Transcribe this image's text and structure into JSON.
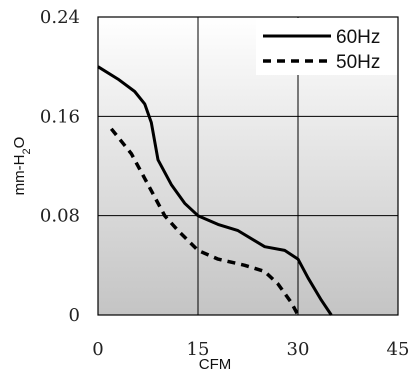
{
  "chart_data": {
    "type": "line",
    "xlabel": "CFM",
    "ylabel_parts": {
      "main": "mm-H",
      "sub": "2",
      "tail": "O"
    },
    "xlim": [
      0,
      45
    ],
    "ylim": [
      0,
      0.24
    ],
    "xticks": [
      "0",
      "15",
      "30",
      "45"
    ],
    "yticks": [
      "0",
      "0.08",
      "0.16",
      "0.24"
    ],
    "grid": true,
    "legend_position": "top-right",
    "background": "vertical gradient, white at top to light gray at bottom",
    "series": [
      {
        "name": "60Hz",
        "style": "solid",
        "color": "#000000",
        "points": [
          [
            0,
            0.2
          ],
          [
            3,
            0.19
          ],
          [
            5.5,
            0.18
          ],
          [
            7,
            0.17
          ],
          [
            8,
            0.155
          ],
          [
            9,
            0.125
          ],
          [
            11,
            0.105
          ],
          [
            13,
            0.09
          ],
          [
            15,
            0.08
          ],
          [
            18,
            0.073
          ],
          [
            21,
            0.068
          ],
          [
            25,
            0.055
          ],
          [
            28,
            0.052
          ],
          [
            30,
            0.045
          ],
          [
            31.5,
            0.03
          ],
          [
            33.5,
            0.012
          ],
          [
            35,
            0
          ]
        ]
      },
      {
        "name": "50Hz",
        "style": "dashed",
        "color": "#000000",
        "points": [
          [
            2,
            0.15
          ],
          [
            5,
            0.13
          ],
          [
            7,
            0.11
          ],
          [
            8.5,
            0.095
          ],
          [
            10,
            0.08
          ],
          [
            12,
            0.068
          ],
          [
            15,
            0.052
          ],
          [
            18,
            0.045
          ],
          [
            22,
            0.04
          ],
          [
            25,
            0.035
          ],
          [
            27,
            0.025
          ],
          [
            29,
            0.01
          ],
          [
            30,
            0
          ]
        ]
      }
    ]
  }
}
